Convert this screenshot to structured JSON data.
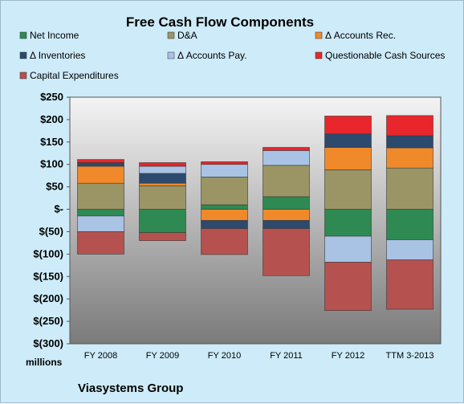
{
  "chart_data": {
    "type": "bar",
    "stacked": true,
    "title": "Free Cash Flow Components",
    "units_label": "millions",
    "footer": "Viasystems Group",
    "categories": [
      "FY 2008",
      "FY 2009",
      "FY 2010",
      "FY 2011",
      "FY 2012",
      "TTM 3-2013"
    ],
    "ylim": [
      -300,
      250
    ],
    "yticks": [
      250,
      200,
      150,
      100,
      50,
      0,
      -50,
      -100,
      -150,
      -200,
      -250,
      -300
    ],
    "ytick_labels": [
      "$250",
      "$200",
      "$150",
      "$100",
      "$50",
      "$-",
      "$(50)",
      "$(100)",
      "$(150)",
      "$(200)",
      "$(250)",
      "$(300)"
    ],
    "grid": false,
    "legend_position": "top",
    "series": [
      {
        "name": "Net Income",
        "color": "#2e8a52",
        "values": [
          -15,
          -52,
          10,
          28,
          -60,
          -68
        ]
      },
      {
        "name": "D&A",
        "color": "#9b9565",
        "values": [
          58,
          52,
          62,
          70,
          88,
          92
        ]
      },
      {
        "name": "Δ Accounts Rec.",
        "color": "#f0892a",
        "values": [
          38,
          6,
          -25,
          -25,
          50,
          45
        ]
      },
      {
        "name": "Δ Inventories",
        "color": "#2c4a6e",
        "values": [
          8,
          22,
          -18,
          -18,
          30,
          27
        ]
      },
      {
        "name": "Δ Accounts Pay.",
        "color": "#a9c3e4",
        "values": [
          -35,
          16,
          28,
          33,
          -58,
          -45
        ]
      },
      {
        "name": "Questionable Cash Sources",
        "color": "#e8262b",
        "values": [
          7,
          8,
          6,
          7,
          40,
          45
        ]
      },
      {
        "name": "Capital Expenditures",
        "color": "#b5524f",
        "values": [
          -50,
          -18,
          -58,
          -105,
          -108,
          -110
        ]
      }
    ]
  }
}
